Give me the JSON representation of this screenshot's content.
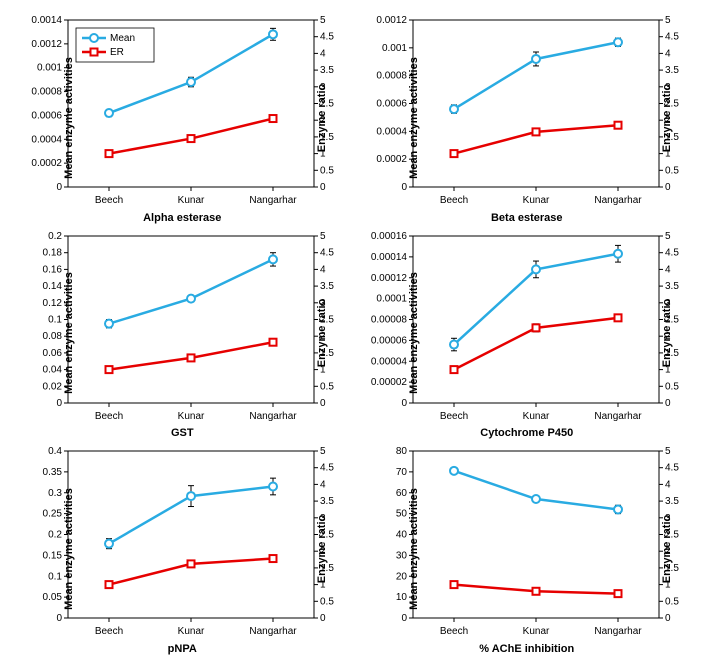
{
  "global": {
    "categories": [
      "Beech",
      "Kunar",
      "Nangarhar"
    ],
    "left_label": "Mean enzyme activities",
    "right_label": "Enzyme ratio",
    "right_ylim": [
      0,
      5
    ],
    "right_ticks": [
      0,
      0.5,
      1,
      1.5,
      2,
      2.5,
      3,
      3.5,
      4,
      4.5,
      5
    ],
    "mean_color": "#29abe2",
    "er_color": "#e60000",
    "marker_stroke": "#000000",
    "error_color": "#000000",
    "tick_fontsize": 10,
    "label_fontsize": 11,
    "line_width": 2.5,
    "marker_radius": 4,
    "legend": {
      "mean": "Mean",
      "er": "ER"
    }
  },
  "panels": [
    {
      "title": "Alpha esterase",
      "show_legend": true,
      "left_ylim": [
        0,
        0.0014
      ],
      "left_ticks": [
        0,
        0.0002,
        0.0004,
        0.0006,
        0.0008,
        0.001,
        0.0012,
        0.0014
      ],
      "left_tick_labels": [
        "0",
        "0.0002",
        "0.0004",
        "0.0006",
        "0.0008",
        "0.001",
        "0.0012",
        "0.0014"
      ],
      "mean": [
        0.00062,
        0.00088,
        0.00128
      ],
      "mean_err": [
        3e-05,
        4e-05,
        5e-05
      ],
      "er": [
        1.0,
        1.45,
        2.05
      ],
      "er_err": [
        0.05,
        0.05,
        0.05
      ]
    },
    {
      "title": "Beta esterase",
      "show_legend": false,
      "left_ylim": [
        0,
        0.0012
      ],
      "left_ticks": [
        0,
        0.0002,
        0.0004,
        0.0006,
        0.0008,
        0.001,
        0.0012
      ],
      "left_tick_labels": [
        "0",
        "0.0002",
        "0.0004",
        "0.0006",
        "0.0008",
        "0.001",
        "0.0012"
      ],
      "mean": [
        0.00056,
        0.00092,
        0.00104
      ],
      "mean_err": [
        3e-05,
        5e-05,
        3e-05
      ],
      "er": [
        1.0,
        1.65,
        1.85
      ],
      "er_err": [
        0.05,
        0.05,
        0.05
      ]
    },
    {
      "title": "GST",
      "show_legend": false,
      "left_ylim": [
        0,
        0.2
      ],
      "left_ticks": [
        0,
        0.02,
        0.04,
        0.06,
        0.08,
        0.1,
        0.12,
        0.14,
        0.16,
        0.18,
        0.2
      ],
      "left_tick_labels": [
        "0",
        "0.02",
        "0.04",
        "0.06",
        "0.08",
        "0.1",
        "0.12",
        "0.14",
        "0.16",
        "0.18",
        "0.2"
      ],
      "mean": [
        0.095,
        0.125,
        0.172
      ],
      "mean_err": [
        0.005,
        0.004,
        0.008
      ],
      "er": [
        1.0,
        1.35,
        1.82
      ],
      "er_err": [
        0.05,
        0.05,
        0.08
      ]
    },
    {
      "title": "Cytochrome P450",
      "show_legend": false,
      "left_ylim": [
        0,
        0.00016
      ],
      "left_ticks": [
        0,
        2e-05,
        4e-05,
        6e-05,
        8e-05,
        0.0001,
        0.00012,
        0.00014,
        0.00016
      ],
      "left_tick_labels": [
        "0",
        "0.00002",
        "0.00004",
        "0.00006",
        "0.00008",
        "0.0001",
        "0.00012",
        "0.00014",
        "0.00016"
      ],
      "mean": [
        5.6e-05,
        0.000128,
        0.000143
      ],
      "mean_err": [
        6e-06,
        8e-06,
        8e-06
      ],
      "er": [
        1.0,
        2.25,
        2.55
      ],
      "er_err": [
        0.08,
        0.12,
        0.1
      ]
    },
    {
      "title": "pNPA",
      "show_legend": false,
      "left_ylim": [
        0,
        0.4
      ],
      "left_ticks": [
        0,
        0.05,
        0.1,
        0.15,
        0.2,
        0.25,
        0.3,
        0.35,
        0.4
      ],
      "left_tick_labels": [
        "0",
        "0.05",
        "0.1",
        "0.15",
        "0.2",
        "0.25",
        "0.3",
        "0.35",
        "0.4"
      ],
      "mean": [
        0.178,
        0.292,
        0.315
      ],
      "mean_err": [
        0.012,
        0.025,
        0.02
      ],
      "er": [
        1.0,
        1.62,
        1.78
      ],
      "er_err": [
        0.05,
        0.08,
        0.05
      ]
    },
    {
      "title": "% AChE inhibition",
      "show_legend": false,
      "left_ylim": [
        0,
        80
      ],
      "left_ticks": [
        0,
        10,
        20,
        30,
        40,
        50,
        60,
        70,
        80
      ],
      "left_tick_labels": [
        "0",
        "10",
        "20",
        "30",
        "40",
        "50",
        "60",
        "70",
        "80"
      ],
      "mean": [
        70.5,
        57,
        52
      ],
      "mean_err": [
        1.2,
        1.2,
        2
      ],
      "er": [
        1.0,
        0.8,
        0.73
      ],
      "er_err": [
        0.04,
        0.04,
        0.04
      ]
    }
  ]
}
